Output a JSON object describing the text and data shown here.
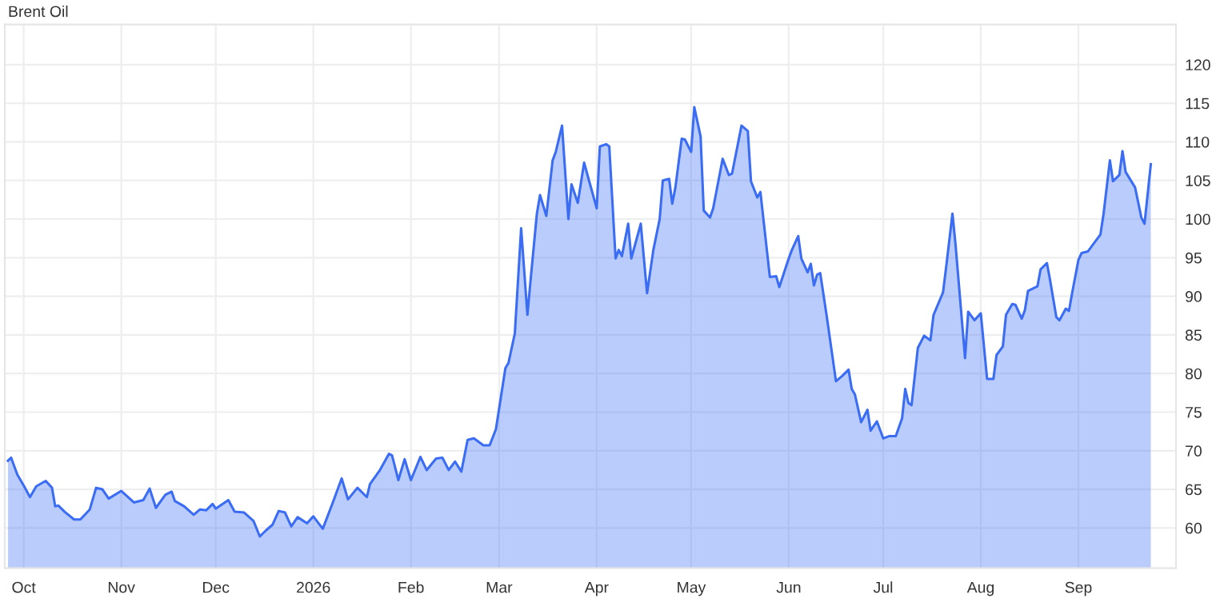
{
  "chart_data": {
    "type": "area",
    "title": "Brent Oil",
    "color": "#3a6cf4",
    "grid": true,
    "marker": "none",
    "line_style": "solid",
    "ylim": [
      54.8,
      125.2
    ],
    "yticks": [
      60,
      65,
      70,
      75,
      80,
      85,
      90,
      95,
      100,
      105,
      110,
      115,
      120
    ],
    "xlim": [
      "2025-09-25",
      "2026-10-02"
    ],
    "xticks": [
      {
        "value": "2025-10-01",
        "label": "Oct"
      },
      {
        "value": "2025-11-01",
        "label": "Nov"
      },
      {
        "value": "2025-12-01",
        "label": "Dec"
      },
      {
        "value": "2026-01-01",
        "label": "2026"
      },
      {
        "value": "2026-02-01",
        "label": "Feb"
      },
      {
        "value": "2026-03-01",
        "label": "Mar"
      },
      {
        "value": "2026-04-01",
        "label": "Apr"
      },
      {
        "value": "2026-05-01",
        "label": "May"
      },
      {
        "value": "2026-06-01",
        "label": "Jun"
      },
      {
        "value": "2026-07-01",
        "label": "Jul"
      },
      {
        "value": "2026-08-01",
        "label": "Aug"
      },
      {
        "value": "2026-09-01",
        "label": "Sep"
      }
    ],
    "x": [
      "2025-09-26",
      "2025-09-27",
      "2025-09-29",
      "2025-10-01",
      "2025-10-03",
      "2025-10-05",
      "2025-10-08",
      "2025-10-10",
      "2025-10-11",
      "2025-10-12",
      "2025-10-14",
      "2025-10-17",
      "2025-10-19",
      "2025-10-22",
      "2025-10-24",
      "2025-10-26",
      "2025-10-28",
      "2025-11-01",
      "2025-11-05",
      "2025-11-08",
      "2025-11-10",
      "2025-11-12",
      "2025-11-15",
      "2025-11-17",
      "2025-11-18",
      "2025-11-21",
      "2025-11-24",
      "2025-11-26",
      "2025-11-28",
      "2025-11-30",
      "2025-12-01",
      "2025-12-05",
      "2025-12-07",
      "2025-12-10",
      "2025-12-13",
      "2025-12-15",
      "2025-12-17",
      "2025-12-19",
      "2025-12-21",
      "2025-12-23",
      "2025-12-25",
      "2025-12-27",
      "2025-12-30",
      "2026-01-01",
      "2026-01-04",
      "2026-01-07",
      "2026-01-10",
      "2026-01-12",
      "2026-01-15",
      "2026-01-18",
      "2026-01-19",
      "2026-01-22",
      "2026-01-25",
      "2026-01-26",
      "2026-01-28",
      "2026-01-30",
      "2026-02-01",
      "2026-02-04",
      "2026-02-06",
      "2026-02-09",
      "2026-02-11",
      "2026-02-13",
      "2026-02-15",
      "2026-02-17",
      "2026-02-19",
      "2026-02-21",
      "2026-02-24",
      "2026-02-26",
      "2026-02-28",
      "2026-03-03",
      "2026-03-04",
      "2026-03-06",
      "2026-03-08",
      "2026-03-10",
      "2026-03-11",
      "2026-03-13",
      "2026-03-14",
      "2026-03-16",
      "2026-03-18",
      "2026-03-19",
      "2026-03-21",
      "2026-03-23",
      "2026-03-24",
      "2026-03-26",
      "2026-03-28",
      "2026-04-01",
      "2026-04-02",
      "2026-04-04",
      "2026-04-05",
      "2026-04-07",
      "2026-04-08",
      "2026-04-09",
      "2026-04-11",
      "2026-04-12",
      "2026-04-15",
      "2026-04-17",
      "2026-04-19",
      "2026-04-21",
      "2026-04-22",
      "2026-04-24",
      "2026-04-25",
      "2026-04-26",
      "2026-04-28",
      "2026-04-29",
      "2026-05-01",
      "2026-05-02",
      "2026-05-04",
      "2026-05-05",
      "2026-05-07",
      "2026-05-08",
      "2026-05-11",
      "2026-05-13",
      "2026-05-14",
      "2026-05-17",
      "2026-05-19",
      "2026-05-20",
      "2026-05-22",
      "2026-05-23",
      "2026-05-26",
      "2026-05-28",
      "2026-05-29",
      "2026-06-01",
      "2026-06-02",
      "2026-06-04",
      "2026-06-05",
      "2026-06-07",
      "2026-06-08",
      "2026-06-09",
      "2026-06-10",
      "2026-06-11",
      "2026-06-13",
      "2026-06-16",
      "2026-06-18",
      "2026-06-20",
      "2026-06-21",
      "2026-06-22",
      "2026-06-24",
      "2026-06-26",
      "2026-06-27",
      "2026-06-29",
      "2026-07-01",
      "2026-07-03",
      "2026-07-05",
      "2026-07-07",
      "2026-07-08",
      "2026-07-09",
      "2026-07-10",
      "2026-07-12",
      "2026-07-14",
      "2026-07-16",
      "2026-07-17",
      "2026-07-20",
      "2026-07-21",
      "2026-07-23",
      "2026-07-24",
      "2026-07-27",
      "2026-07-28",
      "2026-07-30",
      "2026-08-01",
      "2026-08-03",
      "2026-08-05",
      "2026-08-06",
      "2026-08-08",
      "2026-08-09",
      "2026-08-11",
      "2026-08-12",
      "2026-08-14",
      "2026-08-15",
      "2026-08-16",
      "2026-08-19",
      "2026-08-20",
      "2026-08-22",
      "2026-08-23",
      "2026-08-25",
      "2026-08-26",
      "2026-08-28",
      "2026-08-29",
      "2026-08-30",
      "2026-09-01",
      "2026-09-02",
      "2026-09-04",
      "2026-09-06",
      "2026-09-08",
      "2026-09-09",
      "2026-09-11",
      "2026-09-12",
      "2026-09-14",
      "2026-09-15",
      "2026-09-16",
      "2026-09-19",
      "2026-09-21",
      "2026-09-22",
      "2026-09-24"
    ],
    "values": [
      68.7,
      69.1,
      66.9,
      65.5,
      64.0,
      65.4,
      66.1,
      65.2,
      62.8,
      62.9,
      62.1,
      61.1,
      61.1,
      62.4,
      65.2,
      65.0,
      63.8,
      64.8,
      63.3,
      63.6,
      65.1,
      62.6,
      64.3,
      64.7,
      63.5,
      62.8,
      61.7,
      62.4,
      62.3,
      63.1,
      62.5,
      63.6,
      62.1,
      62.0,
      60.9,
      58.9,
      59.7,
      60.4,
      62.2,
      62.0,
      60.2,
      61.4,
      60.6,
      61.5,
      59.9,
      63.1,
      66.4,
      63.7,
      65.2,
      64.0,
      65.7,
      67.4,
      69.6,
      69.4,
      66.2,
      68.9,
      66.2,
      69.2,
      67.5,
      69.0,
      69.1,
      67.5,
      68.6,
      67.3,
      71.4,
      71.6,
      70.7,
      70.7,
      72.8,
      80.7,
      81.4,
      85.2,
      98.8,
      87.6,
      92.1,
      100.7,
      103.1,
      100.4,
      107.6,
      108.7,
      112.1,
      100.0,
      104.5,
      102.1,
      107.3,
      101.4,
      109.4,
      109.7,
      109.4,
      94.9,
      96.0,
      95.2,
      99.4,
      94.9,
      99.4,
      90.4,
      96.0,
      100.0,
      105.0,
      105.2,
      102.0,
      104.1,
      110.4,
      110.3,
      108.7,
      114.5,
      110.7,
      101.1,
      100.2,
      101.4,
      107.8,
      105.7,
      105.9,
      112.1,
      111.4,
      104.9,
      102.8,
      103.5,
      92.5,
      92.6,
      91.2,
      94.9,
      96.0,
      97.8,
      94.9,
      93.1,
      94.2,
      91.4,
      92.8,
      93.0,
      87.6,
      79.0,
      79.7,
      80.5,
      78.0,
      77.3,
      73.7,
      75.3,
      72.6,
      73.8,
      71.6,
      71.9,
      71.9,
      74.2,
      78.0,
      76.2,
      75.9,
      83.3,
      84.9,
      84.3,
      87.6,
      90.5,
      93.8,
      100.7,
      96.6,
      82.0,
      88.0,
      86.9,
      87.8,
      79.3,
      79.3,
      82.4,
      83.5,
      87.6,
      89.0,
      88.9,
      87.1,
      88.2,
      90.7,
      91.3,
      93.5,
      94.3,
      92.1,
      87.3,
      86.9,
      88.4,
      88.1,
      90.4,
      94.7,
      95.6,
      95.8,
      96.9,
      98.0,
      100.7,
      107.6,
      104.9,
      105.7,
      108.8,
      106.1,
      104.1,
      100.2,
      99.4,
      107.1
    ]
  }
}
